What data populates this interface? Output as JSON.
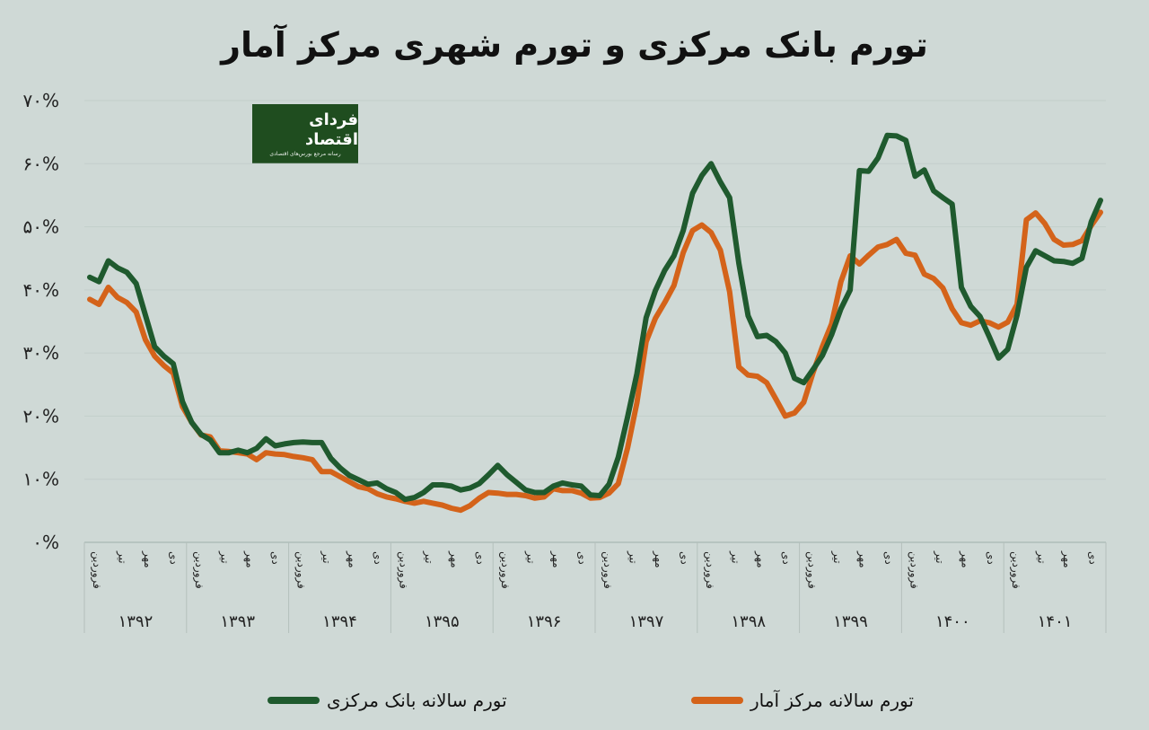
{
  "title": "تورم بانک مرکزی و تورم شهری مرکز آمار",
  "logo": {
    "name": "فردای اقتصاد",
    "tagline": "رسانه مرجع بورس‌های اقتصادی"
  },
  "colors": {
    "background": "#cfd9d6",
    "series_green": "#1f5a2e",
    "series_orange": "#d4631a",
    "grid": "#b9c5c1",
    "logo_bg": "#1f4d1f"
  },
  "chart_data": {
    "type": "line",
    "title": "تورم بانک مرکزی و تورم شهری مرکز آمار",
    "ylim": [
      0,
      70
    ],
    "yticks": [
      "۰%",
      "۱۰%",
      "۲۰%",
      "۳۰%",
      "۴۰%",
      "۵۰%",
      "۶۰%",
      "۷۰%"
    ],
    "month_labels": [
      "فروردین",
      "تیر",
      "مهر",
      "دی"
    ],
    "years": [
      "۱۳۹۲",
      "۱۳۹۳",
      "۱۳۹۴",
      "۱۳۹۵",
      "۱۳۹۶",
      "۱۳۹۷",
      "۱۳۹۸",
      "۱۳۹۹",
      "۱۴۰۰",
      "۱۴۰۱"
    ],
    "months_per_year": 12,
    "grid": true,
    "legend_position": "bottom",
    "series": [
      {
        "name": "تورم سالانه بانک مرکزی",
        "color": "#1f5a2e",
        "values": [
          42.0,
          41.3,
          44.6,
          43.5,
          42.8,
          41.0,
          36.0,
          31.0,
          29.5,
          28.3,
          22.3,
          19.0,
          17.1,
          16.2,
          14.2,
          14.2,
          14.6,
          14.2,
          14.9,
          16.4,
          15.3,
          15.6,
          15.8,
          15.9,
          15.8,
          15.8,
          13.3,
          11.8,
          10.6,
          9.9,
          9.2,
          9.4,
          8.5,
          7.9,
          6.8,
          7.1,
          7.9,
          9.1,
          9.1,
          8.9,
          8.3,
          8.6,
          9.3,
          10.7,
          12.2,
          10.7,
          9.5,
          8.3,
          7.9,
          7.9,
          8.9,
          9.4,
          9.1,
          8.9,
          7.5,
          7.4,
          9.2,
          13.5,
          19.9,
          26.7,
          35.6,
          39.9,
          43.1,
          45.4,
          49.4,
          55.3,
          58.1,
          60.0,
          57.1,
          54.6,
          44.2,
          35.9,
          32.6,
          32.8,
          31.8,
          30.0,
          26.0,
          25.3,
          27.4,
          29.6,
          32.9,
          37.0,
          40.0,
          58.9,
          58.8,
          60.9,
          64.5,
          64.4,
          63.7,
          58.0,
          59.0,
          55.7,
          54.6,
          53.6,
          40.4,
          37.4,
          35.8,
          32.6,
          29.2,
          30.6,
          36.0,
          43.6,
          46.2,
          45.4,
          44.6,
          44.5,
          44.2,
          45.0,
          50.8,
          54.2
        ]
      },
      {
        "name": "تورم سالانه مرکز آمار",
        "color": "#d4631a",
        "values": [
          38.5,
          37.7,
          40.4,
          38.8,
          38.0,
          36.5,
          32.1,
          29.5,
          28.0,
          26.8,
          21.5,
          19.0,
          17.0,
          16.7,
          14.5,
          14.4,
          14.2,
          14.0,
          13.1,
          14.2,
          14.0,
          13.9,
          13.6,
          13.4,
          13.1,
          11.2,
          11.2,
          10.4,
          9.6,
          8.8,
          8.5,
          7.7,
          7.2,
          6.9,
          6.5,
          6.2,
          6.5,
          6.2,
          5.9,
          5.4,
          5.1,
          5.8,
          7.0,
          7.9,
          7.8,
          7.6,
          7.6,
          7.4,
          7.0,
          7.2,
          8.5,
          8.2,
          8.2,
          7.8,
          7.0,
          7.1,
          7.8,
          9.3,
          15.0,
          22.1,
          31.8,
          35.5,
          38.0,
          40.7,
          45.9,
          49.4,
          50.3,
          49.1,
          46.3,
          39.7,
          27.8,
          26.5,
          26.3,
          25.3,
          22.7,
          20.0,
          20.5,
          22.2,
          26.9,
          31.0,
          34.6,
          41.3,
          45.4,
          44.1,
          45.5,
          46.8,
          47.2,
          48.0,
          45.8,
          45.5,
          42.5,
          41.8,
          40.3,
          37.0,
          34.8,
          34.4,
          35.1,
          34.8,
          34.1,
          34.9,
          37.7,
          51.1,
          52.2,
          50.5,
          48.0,
          47.1,
          47.2,
          47.8,
          50.2,
          52.3
        ]
      }
    ]
  }
}
